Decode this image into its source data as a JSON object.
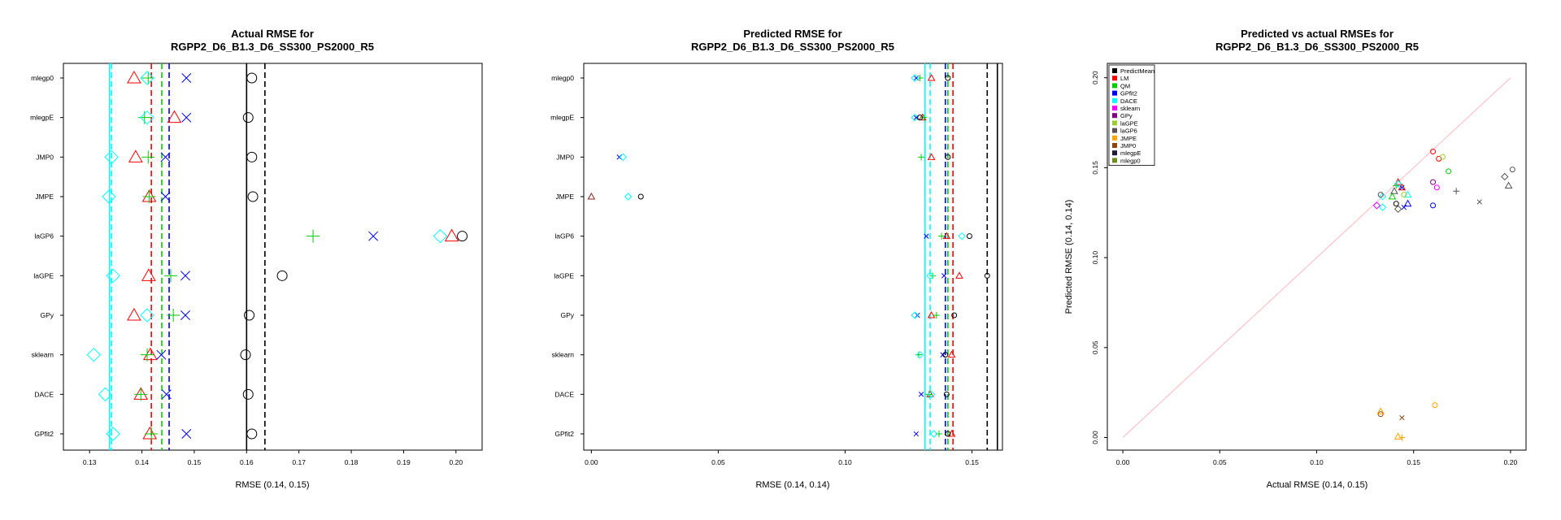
{
  "chart_data": [
    {
      "type": "scatter",
      "title": "Actual RMSE for",
      "subtitle": "RGPP2_D6_B1.3_D6_SS300_PS2000_R5",
      "xlabel": "RMSE (0.14, 0.15)",
      "ylabel": "",
      "xlim": [
        0.125,
        0.205
      ],
      "xticks": [
        "0.13",
        "0.14",
        "0.15",
        "0.16",
        "0.17",
        "0.18",
        "0.19",
        "0.20"
      ],
      "categories": [
        "mlegp0",
        "mlegpE",
        "JMP0",
        "JMPE",
        "laGP6",
        "laGPE",
        "GPy",
        "sklearn",
        "DACE",
        "GPfit2"
      ],
      "series": [
        {
          "color": "#ff0000",
          "marker": "triangle",
          "values": [
            0.1385,
            0.1462,
            0.1388,
            0.1414,
            0.1992,
            0.1413,
            0.1385,
            0.1416,
            0.1398,
            0.1415
          ]
        },
        {
          "color": "#00cc00",
          "marker": "plus",
          "values": [
            0.1412,
            0.1405,
            0.1412,
            0.1414,
            0.1727,
            0.1455,
            0.146,
            0.141,
            0.1398,
            0.1418
          ]
        },
        {
          "color": "#0000ff",
          "marker": "x",
          "values": [
            0.1485,
            0.1485,
            0.1445,
            0.1445,
            0.1842,
            0.1483,
            0.1483,
            0.1437,
            0.1447,
            0.1485
          ]
        },
        {
          "color": "#00ffff",
          "marker": "diamond",
          "values": [
            0.141,
            0.141,
            0.1342,
            0.1337,
            0.197,
            0.1345,
            0.141,
            0.1308,
            0.133,
            0.1345
          ]
        },
        {
          "color": "#000000",
          "marker": "circle",
          "values": [
            0.161,
            0.1603,
            0.161,
            0.1612,
            0.2012,
            0.1668,
            0.1605,
            0.1598,
            0.1603,
            0.161
          ]
        }
      ],
      "vlines": [
        {
          "color": "#ff0000",
          "style": "dashed",
          "value": 0.1418
        },
        {
          "color": "#00cc00",
          "style": "dashed",
          "value": 0.1438
        },
        {
          "color": "#0000ff",
          "style": "dashed",
          "value": 0.1452
        },
        {
          "color": "#00ffff",
          "style": "dashed",
          "value": 0.1342
        },
        {
          "color": "#00ffff",
          "style": "solid",
          "value": 0.1338
        },
        {
          "color": "#000000",
          "style": "dashed",
          "value": 0.1635
        },
        {
          "color": "#000000",
          "style": "solid",
          "value": 0.16
        }
      ]
    },
    {
      "type": "scatter",
      "title": "Predicted RMSE for",
      "subtitle": "RGPP2_D6_B1.3_D6_SS300_PS2000_R5",
      "xlabel": "RMSE (0.14, 0.14)",
      "ylabel": "",
      "xlim": [
        -0.003,
        0.162
      ],
      "xticks": [
        "0.00",
        "0.05",
        "0.10",
        "0.15"
      ],
      "categories": [
        "mlegp0",
        "mlegpE",
        "JMP0",
        "JMPE",
        "laGP6",
        "laGPE",
        "GPy",
        "sklearn",
        "DACE",
        "GPfit2"
      ],
      "series": [
        {
          "color": "#ff0000",
          "marker": "triangle",
          "values": [
            0.134,
            0.1305,
            0.134,
            null,
            0.14,
            0.145,
            0.134,
            0.142,
            0.1335,
            0.142
          ]
        },
        {
          "color": "#00cc00",
          "marker": "plus",
          "values": [
            0.1295,
            0.131,
            0.13,
            null,
            0.138,
            0.1345,
            0.136,
            0.129,
            0.133,
            0.137
          ]
        },
        {
          "color": "#0000ff",
          "marker": "x",
          "values": [
            0.128,
            0.128,
            0.011,
            null,
            0.132,
            0.139,
            0.1285,
            0.1385,
            0.13,
            0.128
          ]
        },
        {
          "color": "#00ffff",
          "marker": "diamond",
          "values": [
            0.1275,
            0.1275,
            0.0125,
            0.0145,
            0.146,
            0.1335,
            0.1275,
            0.1295,
            0.134,
            0.135
          ]
        },
        {
          "color": "#000000",
          "marker": "circle",
          "values": [
            0.1405,
            0.1295,
            0.1405,
            0.0195,
            0.149,
            0.156,
            0.143,
            0.1395,
            0.14,
            0.1405
          ]
        },
        {
          "color": "#8b2323",
          "marker": "triangle",
          "values": [
            null,
            null,
            null,
            0.0,
            null,
            null,
            null,
            null,
            null,
            null
          ]
        }
      ],
      "vlines": [
        {
          "color": "#ff0000",
          "style": "dashed",
          "value": 0.1425
        },
        {
          "color": "#00cc00",
          "style": "dashed",
          "value": 0.1405
        },
        {
          "color": "#0000ff",
          "style": "dashed",
          "value": 0.1395
        },
        {
          "color": "#00ffff",
          "style": "dashed",
          "value": 0.1335
        },
        {
          "color": "#00ffff",
          "style": "solid",
          "value": 0.1315
        },
        {
          "color": "#000000",
          "style": "dashed",
          "value": 0.156
        },
        {
          "color": "#000000",
          "style": "solid",
          "value": 0.16
        }
      ]
    },
    {
      "type": "scatter",
      "title": "Predicted vs actual RMSEs for",
      "subtitle": "RGPP2_D6_B1.3_D6_SS300_PS2000_R5",
      "xlabel": "Actual RMSE (0.14, 0.15)",
      "ylabel": "Predicted RMSE (0.14, 0.14)",
      "xlim": [
        -0.008,
        0.208
      ],
      "ylim": [
        -0.007,
        0.208
      ],
      "xticks": [
        "0.00",
        "0.05",
        "0.10",
        "0.15",
        "0.20"
      ],
      "yticks": [
        "0.00",
        "0.05",
        "0.10",
        "0.15",
        "0.20"
      ],
      "diagonal": {
        "color": "#ffb6c1",
        "from": [
          0,
          0
        ],
        "to": [
          0.2,
          0.2
        ]
      },
      "legend": {
        "placement": "top-left",
        "items": [
          {
            "label": "PredictMean",
            "color": "#000000"
          },
          {
            "label": "LM",
            "color": "#ff0000"
          },
          {
            "label": "QM",
            "color": "#00cc00"
          },
          {
            "label": "GPfit2",
            "color": "#0000ff"
          },
          {
            "label": "DACE",
            "color": "#00ffff"
          },
          {
            "label": "sklearn",
            "color": "#ff00ff"
          },
          {
            "label": "GPy",
            "color": "#800080"
          },
          {
            "label": "laGPE",
            "color": "#9acd32"
          },
          {
            "label": "laGP6",
            "color": "#555555"
          },
          {
            "label": "JMPE",
            "color": "#ffa500"
          },
          {
            "label": "JMP0",
            "color": "#8b4513"
          },
          {
            "label": "mlegpE",
            "color": "#1c1c38"
          },
          {
            "label": "mlegp0",
            "color": "#6b8e23"
          }
        ]
      },
      "points": [
        {
          "x": 0.16,
          "y": 0.159,
          "color": "#ff0000",
          "marker": "circle"
        },
        {
          "x": 0.163,
          "y": 0.155,
          "color": "#ff0000",
          "marker": "circle"
        },
        {
          "x": 0.142,
          "y": 0.142,
          "color": "#ff0000",
          "marker": "triangle"
        },
        {
          "x": 0.144,
          "y": 0.139,
          "color": "#ff0000",
          "marker": "triangle"
        },
        {
          "x": 0.165,
          "y": 0.156,
          "color": "#9acd32",
          "marker": "circle"
        },
        {
          "x": 0.168,
          "y": 0.148,
          "color": "#00cc00",
          "marker": "circle"
        },
        {
          "x": 0.141,
          "y": 0.14,
          "color": "#00cc00",
          "marker": "plus"
        },
        {
          "x": 0.139,
          "y": 0.134,
          "color": "#00cc00",
          "marker": "triangle"
        },
        {
          "x": 0.16,
          "y": 0.142,
          "color": "#800080",
          "marker": "circle"
        },
        {
          "x": 0.16,
          "y": 0.129,
          "color": "#0000ff",
          "marker": "circle"
        },
        {
          "x": 0.145,
          "y": 0.128,
          "color": "#0000ff",
          "marker": "x"
        },
        {
          "x": 0.144,
          "y": 0.139,
          "color": "#0000ff",
          "marker": "x"
        },
        {
          "x": 0.147,
          "y": 0.13,
          "color": "#0000ff",
          "marker": "triangle"
        },
        {
          "x": 0.162,
          "y": 0.139,
          "color": "#ff00ff",
          "marker": "circle"
        },
        {
          "x": 0.131,
          "y": 0.129,
          "color": "#ff00ff",
          "marker": "diamond"
        },
        {
          "x": 0.134,
          "y": 0.128,
          "color": "#00ffff",
          "marker": "diamond"
        },
        {
          "x": 0.142,
          "y": 0.141,
          "color": "#00ffff",
          "marker": "diamond"
        },
        {
          "x": 0.134,
          "y": 0.134,
          "color": "#00ffff",
          "marker": "diamond"
        },
        {
          "x": 0.147,
          "y": 0.135,
          "color": "#00ffff",
          "marker": "triangle"
        },
        {
          "x": 0.14,
          "y": 0.137,
          "color": "#555555",
          "marker": "triangle"
        },
        {
          "x": 0.142,
          "y": 0.127,
          "color": "#555555",
          "marker": "diamond"
        },
        {
          "x": 0.197,
          "y": 0.145,
          "color": "#555555",
          "marker": "diamond"
        },
        {
          "x": 0.201,
          "y": 0.149,
          "color": "#555555",
          "marker": "circle"
        },
        {
          "x": 0.199,
          "y": 0.14,
          "color": "#555555",
          "marker": "triangle"
        },
        {
          "x": 0.184,
          "y": 0.131,
          "color": "#555555",
          "marker": "x"
        },
        {
          "x": 0.172,
          "y": 0.137,
          "color": "#555555",
          "marker": "plus"
        },
        {
          "x": 0.133,
          "y": 0.135,
          "color": "#555555",
          "marker": "circle"
        },
        {
          "x": 0.145,
          "y": 0.135,
          "color": "#9acd32",
          "marker": "circle"
        },
        {
          "x": 0.141,
          "y": 0.13,
          "color": "#000000",
          "marker": "circle"
        },
        {
          "x": 0.133,
          "y": 0.013,
          "color": "#8b4513",
          "marker": "circle"
        },
        {
          "x": 0.144,
          "y": 0.011,
          "color": "#8b4513",
          "marker": "x"
        },
        {
          "x": 0.133,
          "y": 0.0145,
          "color": "#ffa500",
          "marker": "triangle"
        },
        {
          "x": 0.161,
          "y": 0.018,
          "color": "#ffa500",
          "marker": "circle"
        },
        {
          "x": 0.142,
          "y": 0.0005,
          "color": "#ffa500",
          "marker": "triangle"
        },
        {
          "x": 0.144,
          "y": 0.0,
          "color": "#ffa500",
          "marker": "plus"
        }
      ]
    }
  ]
}
